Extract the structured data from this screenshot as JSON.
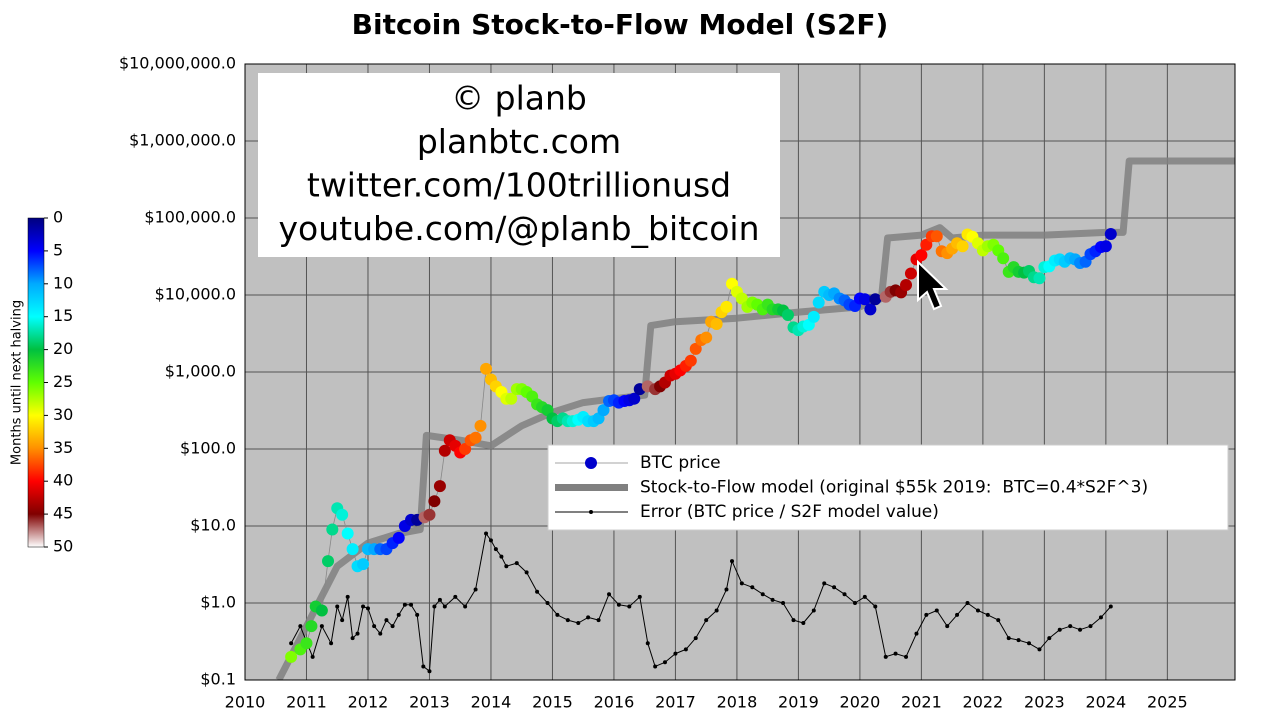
{
  "chart_data": {
    "type": "scatter",
    "title": "Bitcoin Stock-to-Flow Model (S2F)",
    "log_y": true,
    "grid": true,
    "xlim": [
      2010,
      2026.1
    ],
    "xticks": [
      2010,
      2011,
      2012,
      2013,
      2014,
      2015,
      2016,
      2017,
      2018,
      2019,
      2020,
      2021,
      2022,
      2023,
      2024,
      2025
    ],
    "ylim": [
      0.1,
      10000000
    ],
    "yticks": [
      {
        "value": 0.1,
        "label": "$0.1"
      },
      {
        "value": 1,
        "label": "$1.0"
      },
      {
        "value": 10,
        "label": "$10.0"
      },
      {
        "value": 100,
        "label": "$100.0"
      },
      {
        "value": 1000,
        "label": "$1,000.0"
      },
      {
        "value": 10000,
        "label": "$10,000.0"
      },
      {
        "value": 100000,
        "label": "$100,000.0"
      },
      {
        "value": 1000000,
        "label": "$1,000,000.0"
      },
      {
        "value": 10000000,
        "label": "$10,000,000.0"
      }
    ],
    "watermark": [
      "© planb",
      "planbtc.com",
      "twitter.com/100trillionusd",
      "youtube.com/@planb_bitcoin"
    ],
    "colorbar": {
      "label": "Months until next halving",
      "clim": [
        0,
        50
      ],
      "ticks": [
        0,
        5,
        10,
        15,
        20,
        25,
        30,
        35,
        40,
        45,
        50
      ],
      "colors": [
        "#00007f",
        "#0000ff",
        "#00aaff",
        "#00ffff",
        "#00c040",
        "#60ff00",
        "#ffff00",
        "#ff9000",
        "#ff0000",
        "#800000",
        "#ffffff"
      ]
    },
    "series": [
      {
        "name": "BTC price",
        "type": "scatter",
        "color": "#0000cc",
        "x": [
          2010.75,
          2010.9,
          2011.0,
          2011.08,
          2011.15,
          2011.25,
          2011.35,
          2011.42,
          2011.5,
          2011.58,
          2011.67,
          2011.75,
          2011.83,
          2011.92,
          2012.0,
          2012.1,
          2012.2,
          2012.3,
          2012.4,
          2012.5,
          2012.6,
          2012.7,
          2012.8,
          2012.92,
          2013.0,
          2013.08,
          2013.17,
          2013.25,
          2013.33,
          2013.42,
          2013.5,
          2013.58,
          2013.67,
          2013.75,
          2013.83,
          2013.92,
          2014.0,
          2014.08,
          2014.17,
          2014.25,
          2014.33,
          2014.42,
          2014.5,
          2014.58,
          2014.67,
          2014.75,
          2014.83,
          2014.92,
          2015.0,
          2015.08,
          2015.17,
          2015.25,
          2015.33,
          2015.42,
          2015.5,
          2015.58,
          2015.67,
          2015.75,
          2015.83,
          2015.92,
          2016.0,
          2016.08,
          2016.17,
          2016.25,
          2016.33,
          2016.42,
          2016.55,
          2016.67,
          2016.75,
          2016.83,
          2016.92,
          2017.0,
          2017.08,
          2017.17,
          2017.25,
          2017.33,
          2017.42,
          2017.5,
          2017.58,
          2017.67,
          2017.75,
          2017.83,
          2017.92,
          2018.0,
          2018.08,
          2018.17,
          2018.25,
          2018.33,
          2018.42,
          2018.5,
          2018.58,
          2018.67,
          2018.75,
          2018.83,
          2018.92,
          2019.0,
          2019.08,
          2019.17,
          2019.25,
          2019.33,
          2019.42,
          2019.5,
          2019.58,
          2019.67,
          2019.75,
          2019.83,
          2019.92,
          2020.0,
          2020.08,
          2020.17,
          2020.25,
          2020.42,
          2020.5,
          2020.58,
          2020.67,
          2020.75,
          2020.83,
          2020.92,
          2021.0,
          2021.08,
          2021.17,
          2021.25,
          2021.33,
          2021.42,
          2021.5,
          2021.58,
          2021.67,
          2021.75,
          2021.83,
          2021.92,
          2022.0,
          2022.08,
          2022.17,
          2022.25,
          2022.33,
          2022.42,
          2022.5,
          2022.58,
          2022.67,
          2022.75,
          2022.83,
          2022.92,
          2023.0,
          2023.08,
          2023.17,
          2023.25,
          2023.33,
          2023.42,
          2023.5,
          2023.58,
          2023.67,
          2023.75,
          2023.83,
          2023.92,
          2024.0,
          2024.08
        ],
        "values": [
          0.2,
          0.25,
          0.3,
          0.5,
          0.9,
          0.8,
          3.5,
          9,
          17,
          14,
          8,
          5,
          3,
          3.2,
          5,
          5,
          5,
          5,
          6,
          7,
          10,
          12,
          12,
          13,
          14,
          21,
          33,
          95,
          130,
          110,
          90,
          100,
          130,
          140,
          200,
          1100,
          800,
          650,
          550,
          450,
          450,
          600,
          600,
          550,
          480,
          380,
          350,
          320,
          250,
          230,
          250,
          230,
          230,
          240,
          260,
          230,
          230,
          250,
          320,
          420,
          430,
          400,
          420,
          430,
          450,
          600,
          650,
          600,
          650,
          730,
          900,
          950,
          1050,
          1200,
          1400,
          2000,
          2600,
          2800,
          4500,
          4200,
          6000,
          7000,
          14000,
          11000,
          9000,
          7000,
          8000,
          7500,
          6500,
          7500,
          6500,
          6500,
          6300,
          5500,
          3800,
          3500,
          3900,
          4100,
          5200,
          8000,
          11000,
          10000,
          10500,
          9000,
          8500,
          7500,
          7200,
          9000,
          8800,
          6500,
          8800,
          9500,
          11000,
          11500,
          10800,
          13500,
          19000,
          29000,
          33000,
          45000,
          58000,
          58000,
          37000,
          35000,
          40000,
          47000,
          43000,
          61000,
          57000,
          47000,
          38000,
          43000,
          45000,
          38000,
          30000,
          20000,
          23000,
          20000,
          19500,
          20500,
          17000,
          16500,
          23000,
          23500,
          28000,
          29000,
          27000,
          30000,
          29000,
          26000,
          27000,
          34000,
          37000,
          42000,
          43000,
          62000
        ],
        "months": [
          26,
          24,
          23,
          22,
          21,
          20,
          19,
          18,
          17,
          16,
          15,
          14,
          13,
          12,
          11,
          10,
          8,
          7,
          6,
          5,
          4,
          3,
          1,
          47,
          46,
          45,
          44,
          43,
          42,
          41,
          40,
          38,
          37,
          36,
          35,
          34,
          33,
          32,
          30,
          29,
          28,
          27,
          26,
          25,
          24,
          23,
          22,
          21,
          20,
          19,
          18,
          17,
          16,
          15,
          14,
          13,
          12,
          11,
          10,
          8,
          7,
          6,
          5,
          4,
          3,
          1,
          47,
          46,
          45,
          43,
          42,
          41,
          40,
          39,
          38,
          37,
          36,
          35,
          34,
          33,
          32,
          31,
          30,
          29,
          28,
          27,
          26,
          25,
          24,
          23,
          22,
          21,
          20,
          19,
          18,
          17,
          16,
          15,
          14,
          13,
          12,
          11,
          10,
          9,
          8,
          7,
          6,
          5,
          4,
          3,
          1,
          47,
          46,
          45,
          44,
          43,
          42,
          41,
          40,
          39,
          38,
          37,
          36,
          35,
          34,
          33,
          32,
          31,
          30,
          29,
          28,
          27,
          26,
          25,
          24,
          23,
          22,
          21,
          20,
          19,
          18,
          17,
          16,
          15,
          14,
          13,
          12,
          11,
          10,
          9,
          8,
          7,
          6,
          5,
          4,
          3
        ]
      },
      {
        "name": "Stock-to-Flow model (original $55k 2019:  BTC=0.4*S2F^3)",
        "type": "line",
        "color": "#808080",
        "x": [
          2010.55,
          2011.0,
          2011.5,
          2012.0,
          2012.5,
          2012.85,
          2012.95,
          2013.5,
          2014.0,
          2014.5,
          2015.0,
          2015.5,
          2016.0,
          2016.5,
          2016.6,
          2017.0,
          2018.0,
          2019.0,
          2020.0,
          2020.35,
          2020.45,
          2021.0,
          2021.3,
          2021.5,
          2022.0,
          2023.0,
          2024.0,
          2024.28,
          2024.38,
          2026.1
        ],
        "values": [
          0.1,
          0.5,
          3,
          6,
          8,
          9,
          150,
          130,
          110,
          200,
          300,
          400,
          450,
          500,
          4000,
          4500,
          5000,
          6000,
          7000,
          9000,
          55000,
          60000,
          75000,
          55000,
          60000,
          60000,
          65000,
          65000,
          550000,
          550000
        ]
      },
      {
        "name": "Error (BTC price / S2F model value)",
        "type": "line",
        "markers": true,
        "color": "#000000",
        "x": [
          2010.75,
          2010.9,
          2011.1,
          2011.25,
          2011.4,
          2011.5,
          2011.58,
          2011.67,
          2011.75,
          2011.83,
          2011.92,
          2012.0,
          2012.1,
          2012.2,
          2012.3,
          2012.4,
          2012.5,
          2012.6,
          2012.7,
          2012.8,
          2012.9,
          2013.0,
          2013.08,
          2013.17,
          2013.25,
          2013.42,
          2013.58,
          2013.75,
          2013.92,
          2014.0,
          2014.08,
          2014.17,
          2014.25,
          2014.42,
          2014.58,
          2014.75,
          2014.92,
          2015.08,
          2015.25,
          2015.42,
          2015.58,
          2015.75,
          2015.92,
          2016.08,
          2016.25,
          2016.42,
          2016.55,
          2016.67,
          2016.83,
          2017.0,
          2017.17,
          2017.33,
          2017.5,
          2017.67,
          2017.83,
          2017.92,
          2018.08,
          2018.25,
          2018.42,
          2018.58,
          2018.75,
          2018.92,
          2019.08,
          2019.25,
          2019.42,
          2019.58,
          2019.75,
          2019.92,
          2020.08,
          2020.25,
          2020.42,
          2020.58,
          2020.75,
          2020.92,
          2021.08,
          2021.25,
          2021.42,
          2021.58,
          2021.75,
          2021.92,
          2022.08,
          2022.25,
          2022.42,
          2022.58,
          2022.75,
          2022.92,
          2023.08,
          2023.25,
          2023.42,
          2023.58,
          2023.75,
          2023.92,
          2024.08
        ],
        "values": [
          0.3,
          0.5,
          0.2,
          0.5,
          0.3,
          0.9,
          0.6,
          1.2,
          0.35,
          0.4,
          0.9,
          0.85,
          0.5,
          0.4,
          0.6,
          0.5,
          0.7,
          0.95,
          0.95,
          0.7,
          0.15,
          0.13,
          0.9,
          1.1,
          0.9,
          1.2,
          0.9,
          1.5,
          8,
          6.5,
          5,
          4,
          3,
          3.3,
          2.5,
          1.4,
          1.0,
          0.7,
          0.6,
          0.55,
          0.65,
          0.6,
          1.3,
          0.95,
          0.9,
          1.2,
          0.3,
          0.15,
          0.17,
          0.22,
          0.25,
          0.35,
          0.6,
          0.8,
          1.5,
          3.5,
          1.8,
          1.6,
          1.3,
          1.1,
          1.0,
          0.6,
          0.55,
          0.8,
          1.8,
          1.6,
          1.3,
          1.0,
          1.2,
          0.9,
          0.2,
          0.22,
          0.2,
          0.4,
          0.7,
          0.8,
          0.5,
          0.7,
          1.0,
          0.8,
          0.7,
          0.6,
          0.35,
          0.33,
          0.3,
          0.25,
          0.35,
          0.45,
          0.5,
          0.45,
          0.5,
          0.65,
          0.9
        ]
      }
    ]
  }
}
